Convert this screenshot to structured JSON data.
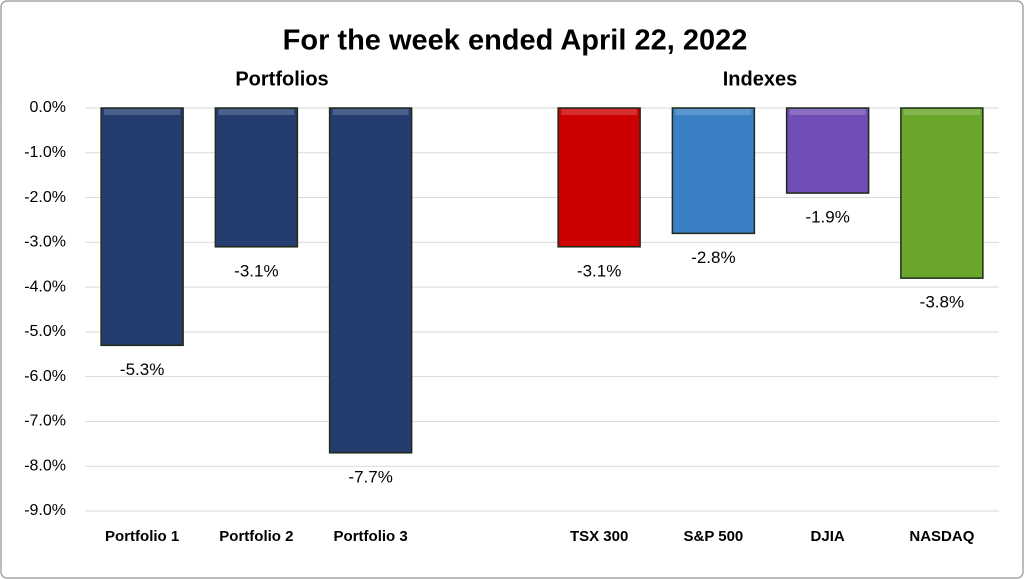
{
  "chart_data": {
    "type": "bar",
    "title": "For the week ended April 22, 2022",
    "annotations": [
      "Portfolios",
      "Indexes"
    ],
    "categories": [
      "Portfolio 1",
      "Portfolio 2",
      "Portfolio 3",
      null,
      "TSX 300",
      "S&P 500",
      "DJIA",
      "NASDAQ"
    ],
    "values": [
      -5.3,
      -3.1,
      -7.7,
      null,
      -3.1,
      -2.8,
      -1.9,
      -3.8
    ],
    "value_labels": [
      "-5.3%",
      "-3.1%",
      "-7.7%",
      null,
      "-3.1%",
      "-2.8%",
      "-1.9%",
      "-3.8%"
    ],
    "colors": [
      "#243d6e",
      "#243d6e",
      "#243d6e",
      null,
      "#cc0000",
      "#3a7fc4",
      "#6f4fb5",
      "#6aa62a"
    ],
    "ylim": [
      -9,
      0
    ],
    "yticks": [
      {
        "value": 0,
        "label": "0.0%"
      },
      {
        "value": -1,
        "label": "-1.0%"
      },
      {
        "value": -2,
        "label": "-2.0%"
      },
      {
        "value": -3,
        "label": "-3.0%"
      },
      {
        "value": -4,
        "label": "-4.0%"
      },
      {
        "value": -5,
        "label": "-5.0%"
      },
      {
        "value": -6,
        "label": "-6.0%"
      },
      {
        "value": -7,
        "label": "-7.0%"
      },
      {
        "value": -8,
        "label": "-8.0%"
      },
      {
        "value": -9,
        "label": "-9.0%"
      }
    ],
    "grid": true
  }
}
